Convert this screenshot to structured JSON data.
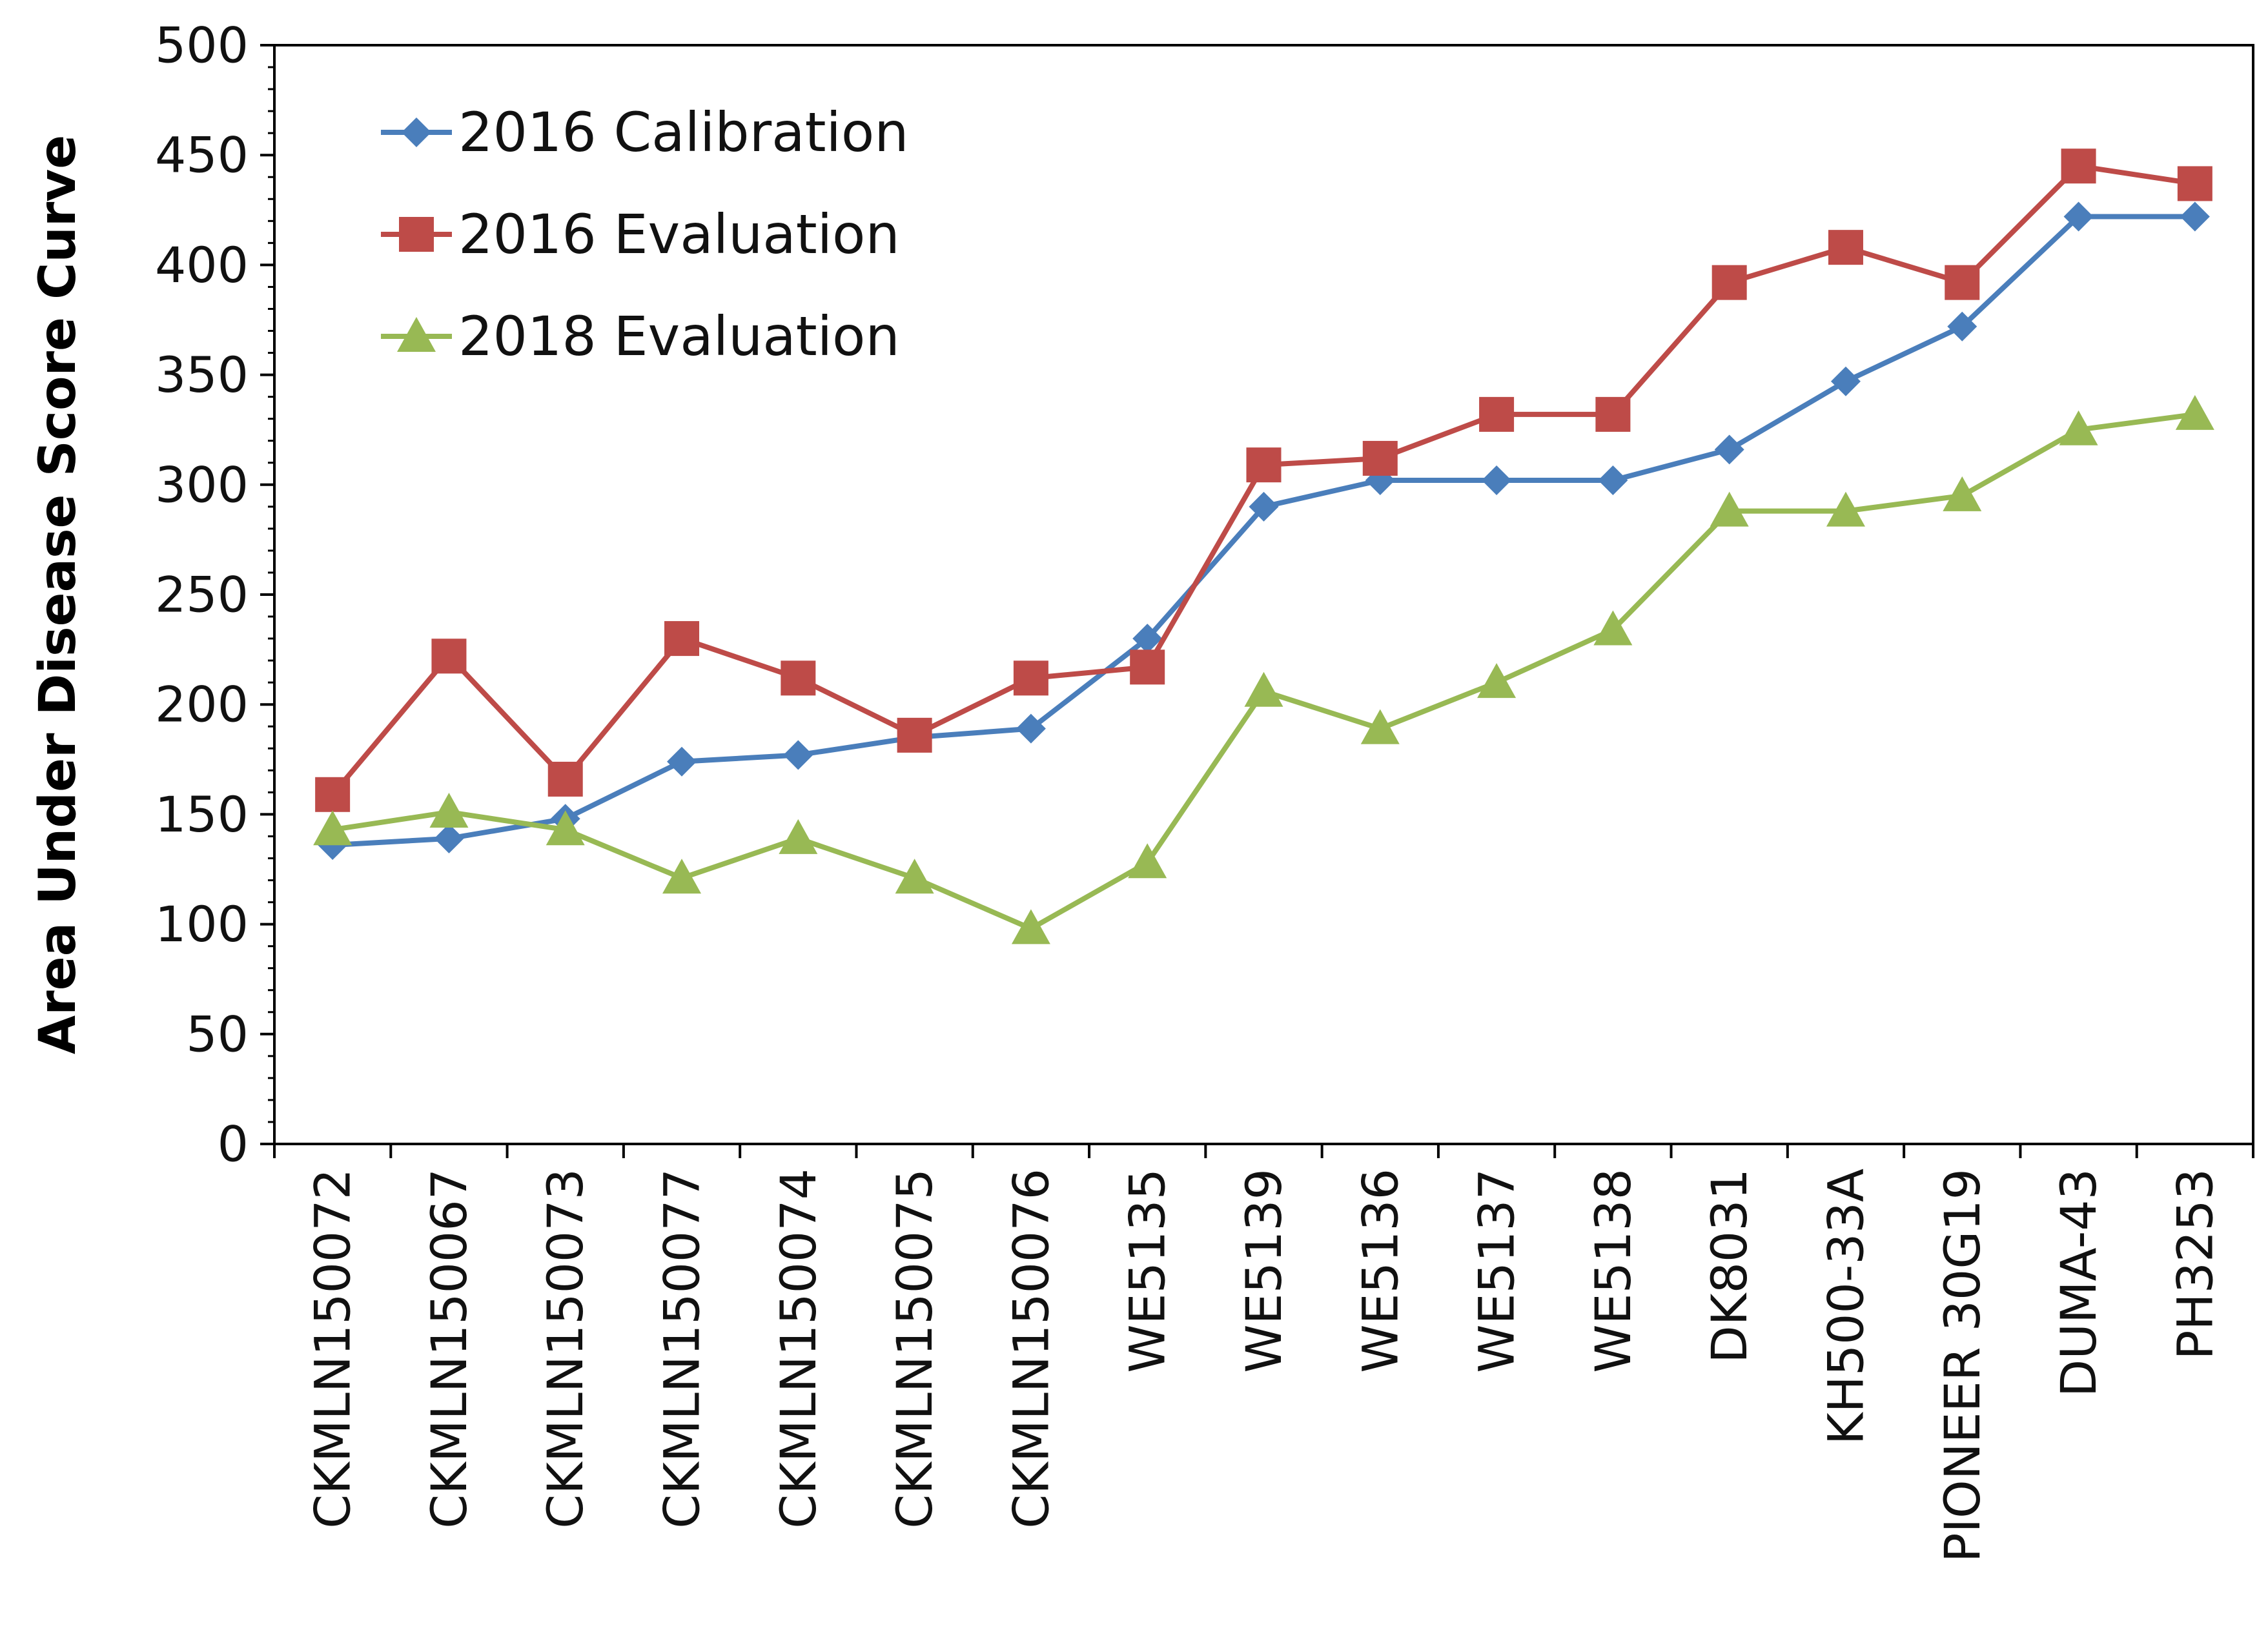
{
  "chart_data": {
    "type": "line",
    "title": "",
    "xlabel": "",
    "ylabel": "Area Under Disease Score Curve",
    "ylim": [
      0,
      500
    ],
    "yticks": [
      0,
      50,
      100,
      150,
      200,
      250,
      300,
      350,
      400,
      450,
      500
    ],
    "grid": false,
    "legend_position": "top-left",
    "categories": [
      "CKMLN150072",
      "CKMLN150067",
      "CKMLN150073",
      "CKMLN150077",
      "CKMLN150074",
      "CKMLN150075",
      "CKMLN150076",
      "WE5135",
      "WE5139",
      "WE5136",
      "WE5137",
      "WE5138",
      "DK8031",
      "KH500-33A",
      "PIONEER 30G19",
      "DUMA-43",
      "PH3253"
    ],
    "series": [
      {
        "name": "2016 Calibration",
        "color": "#4a7ebb",
        "marker": "diamond",
        "values": [
          136,
          139,
          148,
          174,
          177,
          185,
          189,
          230,
          290,
          302,
          302,
          302,
          316,
          347,
          372,
          422,
          422
        ]
      },
      {
        "name": "2016 Evaluation",
        "color": "#be4b48",
        "marker": "square",
        "values": [
          159,
          222,
          166,
          230,
          212,
          186,
          212,
          217,
          309,
          312,
          332,
          332,
          392,
          408,
          392,
          445,
          437
        ]
      },
      {
        "name": "2018 Evaluation",
        "color": "#98b954",
        "marker": "triangle",
        "values": [
          143,
          151,
          143,
          121,
          139,
          121,
          98,
          128,
          206,
          189,
          210,
          234,
          288,
          288,
          295,
          325,
          332
        ]
      }
    ]
  }
}
